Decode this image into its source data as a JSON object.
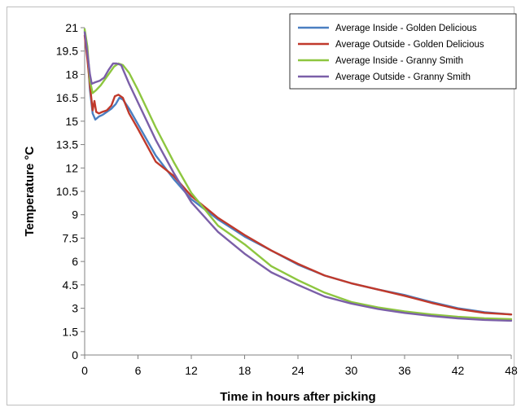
{
  "chart_data": {
    "type": "line",
    "title": "",
    "xlabel": "Time in hours after picking",
    "ylabel": "Temperature °C",
    "xlim": [
      0,
      48
    ],
    "ylim": [
      0,
      21
    ],
    "x_ticks": [
      "0",
      "6",
      "12",
      "18",
      "24",
      "30",
      "36",
      "42",
      "48"
    ],
    "y_ticks": [
      "0",
      "1.5",
      "3",
      "4.5",
      "6",
      "7.5",
      "9",
      "10.5",
      "12",
      "13.5",
      "15",
      "16.5",
      "18",
      "19.5",
      "21"
    ],
    "grid": false,
    "legend_position": "top-right",
    "series": [
      {
        "name": "Average Inside - Golden Delicious",
        "color": "#4a7fc1",
        "points": [
          [
            0,
            20.8
          ],
          [
            0.3,
            19.5
          ],
          [
            0.6,
            17.0
          ],
          [
            0.9,
            15.5
          ],
          [
            1.2,
            15.1
          ],
          [
            1.6,
            15.3
          ],
          [
            2.0,
            15.4
          ],
          [
            2.5,
            15.6
          ],
          [
            3.0,
            15.8
          ],
          [
            3.5,
            16.1
          ],
          [
            3.9,
            16.5
          ],
          [
            4.3,
            16.4
          ],
          [
            5,
            15.8
          ],
          [
            6,
            14.8
          ],
          [
            8,
            12.8
          ],
          [
            10,
            11.3
          ],
          [
            12,
            10.0
          ],
          [
            15,
            8.7
          ],
          [
            18,
            7.6
          ],
          [
            21,
            6.7
          ],
          [
            24,
            5.8
          ],
          [
            27,
            5.1
          ],
          [
            30,
            4.6
          ],
          [
            33,
            4.2
          ],
          [
            36,
            3.85
          ],
          [
            39,
            3.4
          ],
          [
            42,
            3.0
          ],
          [
            45,
            2.75
          ],
          [
            48,
            2.6
          ]
        ]
      },
      {
        "name": "Average Outside - Golden Delicious",
        "color": "#c0392b",
        "points": [
          [
            0,
            20.5
          ],
          [
            0.3,
            19.0
          ],
          [
            0.6,
            17.3
          ],
          [
            0.9,
            15.7
          ],
          [
            1.1,
            16.3
          ],
          [
            1.3,
            15.6
          ],
          [
            1.6,
            15.5
          ],
          [
            2.0,
            15.6
          ],
          [
            2.5,
            15.7
          ],
          [
            3.0,
            16.0
          ],
          [
            3.4,
            16.6
          ],
          [
            3.8,
            16.7
          ],
          [
            4.3,
            16.5
          ],
          [
            5,
            15.5
          ],
          [
            6,
            14.5
          ],
          [
            8,
            12.4
          ],
          [
            10,
            11.5
          ],
          [
            12,
            10.2
          ],
          [
            15,
            8.8
          ],
          [
            18,
            7.7
          ],
          [
            21,
            6.7
          ],
          [
            24,
            5.85
          ],
          [
            27,
            5.1
          ],
          [
            30,
            4.6
          ],
          [
            33,
            4.2
          ],
          [
            36,
            3.8
          ],
          [
            39,
            3.35
          ],
          [
            42,
            2.95
          ],
          [
            45,
            2.7
          ],
          [
            48,
            2.6
          ]
        ]
      },
      {
        "name": "Average Inside - Granny Smith",
        "color": "#8dc63f",
        "points": [
          [
            0,
            20.9
          ],
          [
            0.3,
            19.8
          ],
          [
            0.6,
            17.6
          ],
          [
            0.9,
            16.8
          ],
          [
            1.3,
            17.0
          ],
          [
            1.8,
            17.3
          ],
          [
            2.3,
            17.7
          ],
          [
            2.8,
            18.1
          ],
          [
            3.3,
            18.5
          ],
          [
            3.8,
            18.7
          ],
          [
            4.3,
            18.6
          ],
          [
            5,
            18.1
          ],
          [
            6,
            17.0
          ],
          [
            8,
            14.6
          ],
          [
            10,
            12.4
          ],
          [
            12,
            10.4
          ],
          [
            15,
            8.3
          ],
          [
            18,
            7.1
          ],
          [
            21,
            5.7
          ],
          [
            24,
            4.8
          ],
          [
            27,
            4.0
          ],
          [
            30,
            3.4
          ],
          [
            33,
            3.05
          ],
          [
            36,
            2.8
          ],
          [
            39,
            2.6
          ],
          [
            42,
            2.45
          ],
          [
            45,
            2.35
          ],
          [
            48,
            2.3
          ]
        ]
      },
      {
        "name": "Average Outside - Granny Smith",
        "color": "#7b5fa8",
        "points": [
          [
            0,
            20.7
          ],
          [
            0.3,
            19.4
          ],
          [
            0.6,
            18.0
          ],
          [
            0.8,
            17.4
          ],
          [
            1.2,
            17.5
          ],
          [
            1.7,
            17.6
          ],
          [
            2.2,
            17.8
          ],
          [
            2.7,
            18.3
          ],
          [
            3.2,
            18.7
          ],
          [
            3.6,
            18.7
          ],
          [
            4.1,
            18.6
          ],
          [
            5,
            17.4
          ],
          [
            6,
            16.2
          ],
          [
            8,
            13.8
          ],
          [
            10,
            11.7
          ],
          [
            12,
            9.8
          ],
          [
            15,
            7.9
          ],
          [
            18,
            6.5
          ],
          [
            21,
            5.3
          ],
          [
            24,
            4.5
          ],
          [
            27,
            3.75
          ],
          [
            30,
            3.3
          ],
          [
            33,
            2.95
          ],
          [
            36,
            2.7
          ],
          [
            39,
            2.5
          ],
          [
            42,
            2.35
          ],
          [
            45,
            2.25
          ],
          [
            48,
            2.2
          ]
        ]
      }
    ]
  }
}
